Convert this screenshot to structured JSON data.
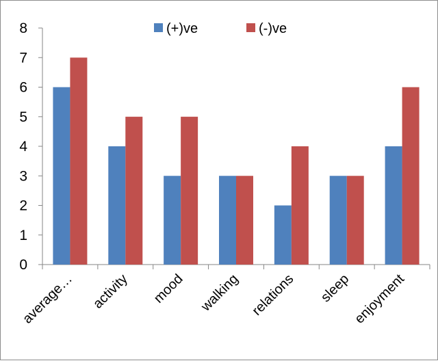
{
  "chart_data": {
    "type": "bar",
    "categories": [
      "average…",
      "activity",
      "mood",
      "walking",
      "relations",
      "sleep",
      "enjoyment"
    ],
    "series": [
      {
        "name": "(+)ve",
        "values": [
          6,
          4,
          3,
          3,
          2,
          3,
          4
        ]
      },
      {
        "name": "(-)ve",
        "values": [
          7,
          5,
          5,
          3,
          4,
          3,
          6
        ]
      }
    ],
    "y_ticks": [
      "0",
      "1",
      "2",
      "3",
      "4",
      "5",
      "6",
      "7",
      "8"
    ],
    "ylim": [
      0,
      8
    ],
    "grid": false,
    "legend_position": "top",
    "colors": {
      "(+)ve": "#4F81BD",
      "(-)ve": "#C0504D"
    }
  }
}
